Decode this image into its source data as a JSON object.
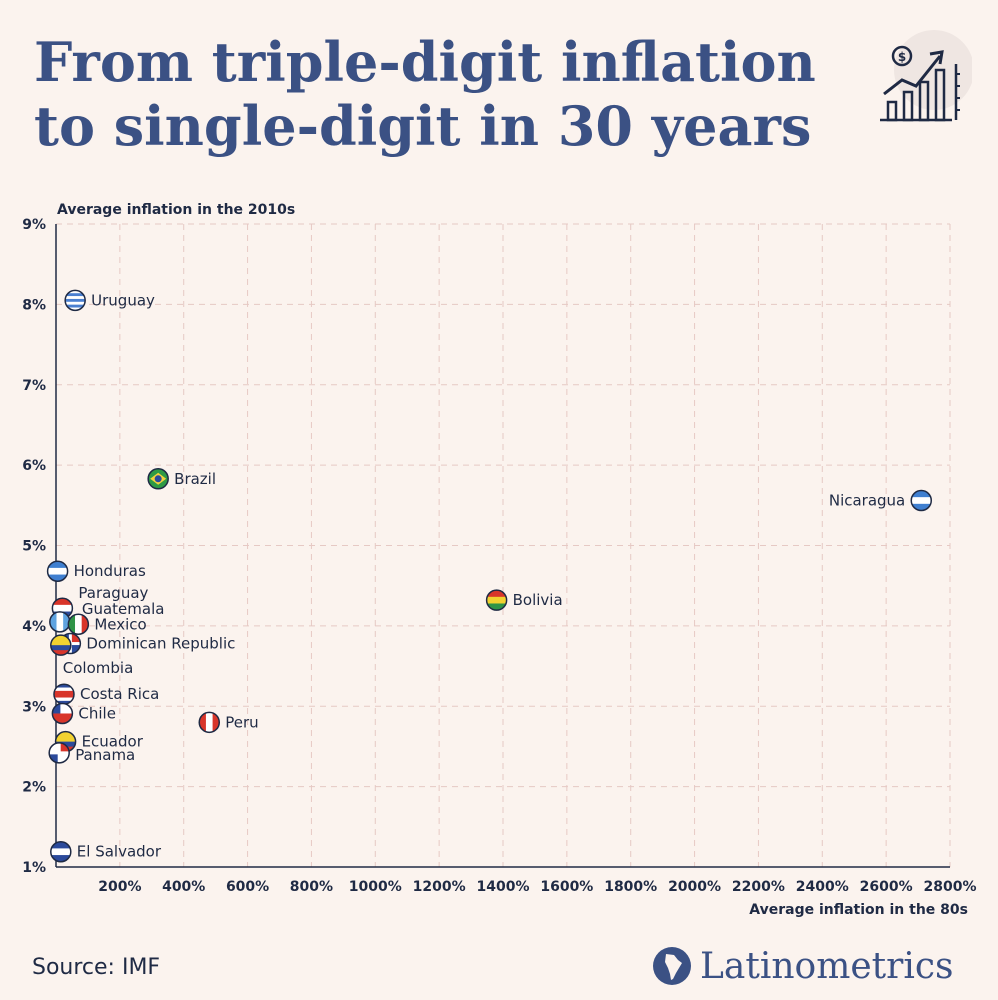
{
  "header": {
    "title_line1": "From triple-digit inflation",
    "title_line2": "to single-digit in 30 years",
    "icon": "dollar-growth-chart-icon"
  },
  "footer": {
    "source": "Source: IMF",
    "brand": "Latinometrics",
    "brand_icon": "latin-america-map-icon"
  },
  "colors": {
    "title": "#3b5184",
    "text": "#1f2a44",
    "grid": "#e6c9c4",
    "background": "#fbf3ee"
  },
  "chart_data": {
    "type": "scatter",
    "title": "",
    "xlabel": "Average inflation in the 80s",
    "ylabel": "Average inflation in the 2010s",
    "xlim": [
      0,
      2800
    ],
    "ylim": [
      1,
      9
    ],
    "x_ticks": [
      200,
      400,
      600,
      800,
      1000,
      1200,
      1400,
      1600,
      1800,
      2000,
      2200,
      2400,
      2600,
      2800
    ],
    "x_tick_labels": [
      "200%",
      "400%",
      "600%",
      "800%",
      "1000%",
      "1200%",
      "1400%",
      "1600%",
      "1800%",
      "2000%",
      "2200%",
      "2400%",
      "2600%",
      "2800%"
    ],
    "y_ticks": [
      1,
      2,
      3,
      4,
      5,
      6,
      7,
      8,
      9
    ],
    "y_tick_labels": [
      "1%",
      "2%",
      "3%",
      "4%",
      "5%",
      "6%",
      "7%",
      "8%",
      "9%"
    ],
    "grid": true,
    "points": [
      {
        "name": "Uruguay",
        "x": 60,
        "y": 8.05,
        "flag": "uruguay",
        "label_side": "right"
      },
      {
        "name": "Brazil",
        "x": 320,
        "y": 5.83,
        "flag": "brazil",
        "label_side": "right"
      },
      {
        "name": "Nicaragua",
        "x": 2710,
        "y": 5.56,
        "flag": "nicaragua",
        "label_side": "left"
      },
      {
        "name": "Honduras",
        "x": 5,
        "y": 4.68,
        "flag": "honduras",
        "label_side": "right"
      },
      {
        "name": "Bolivia",
        "x": 1380,
        "y": 4.32,
        "flag": "bolivia",
        "label_side": "right"
      },
      {
        "name": "Paraguay",
        "x": 20,
        "y": 4.22,
        "flag": "paraguay",
        "label_side": "right"
      },
      {
        "name": "Guatemala",
        "x": 12,
        "y": 4.05,
        "flag": "guatemala",
        "label_side": "right"
      },
      {
        "name": "Mexico",
        "x": 70,
        "y": 4.02,
        "flag": "mexico",
        "label_side": "right"
      },
      {
        "name": "Dominican Republic",
        "x": 45,
        "y": 3.78,
        "flag": "dominican",
        "label_side": "right"
      },
      {
        "name": "Colombia",
        "x": 15,
        "y": 3.76,
        "flag": "colombia",
        "label_side": "below"
      },
      {
        "name": "Costa Rica",
        "x": 25,
        "y": 3.15,
        "flag": "costarica",
        "label_side": "right"
      },
      {
        "name": "Chile",
        "x": 20,
        "y": 2.91,
        "flag": "chile",
        "label_side": "right"
      },
      {
        "name": "Peru",
        "x": 480,
        "y": 2.8,
        "flag": "peru",
        "label_side": "right"
      },
      {
        "name": "Ecuador",
        "x": 30,
        "y": 2.56,
        "flag": "ecuador",
        "label_side": "right"
      },
      {
        "name": "Panama",
        "x": 10,
        "y": 2.42,
        "flag": "panama",
        "label_side": "right"
      },
      {
        "name": "El Salvador",
        "x": 15,
        "y": 1.19,
        "flag": "elsalvador",
        "label_side": "right"
      }
    ]
  }
}
